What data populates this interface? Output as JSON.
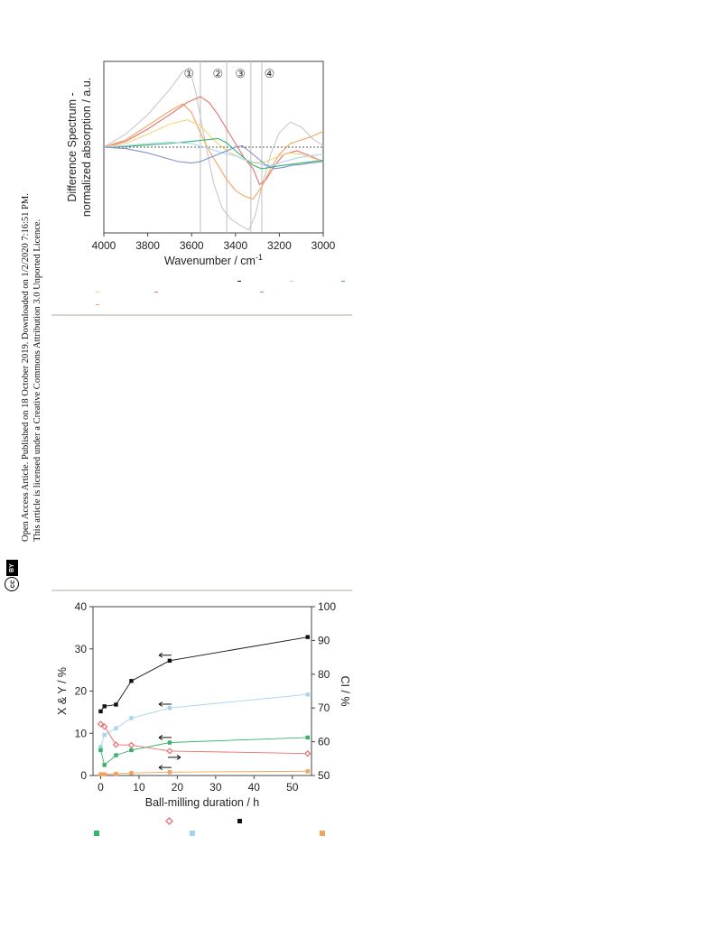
{
  "sidebar": {
    "line1": "Open Access Article. Published on 18 October 2019. Downloaded on 1/2/2020 7:16:51 PM.",
    "line2": "This article is licensed under a Creative Commons Attribution 3.0 Unported Licence.",
    "cc_label": "cc",
    "by_label": "BY"
  },
  "colors": {
    "gray": "#c8c8c8",
    "red": "#e8706f",
    "orange": "#f2a35e",
    "yellow": "#f3d47a",
    "green": "#36b36b",
    "blue": "#7f8fd0",
    "lightblue": "#a7d3ee",
    "black": "#111111"
  },
  "chart_data": [
    {
      "type": "line",
      "xlabel": "Wavenumber / cm",
      "xlabel_sup": "-1",
      "ylabel_line1": "Difference Spectrum -",
      "ylabel_line2": "normalized absorption / a.u.",
      "xlim": [
        4000,
        3000
      ],
      "x_reversed": true,
      "x_ticks": [
        "4000",
        "3800",
        "3600",
        "3400",
        "3200",
        "3000"
      ],
      "regions": [
        {
          "label": "①",
          "x": 3612
        },
        {
          "label": "②",
          "x": 3480
        },
        {
          "label": "③",
          "x": 3378
        },
        {
          "label": "④",
          "x": 3245
        }
      ],
      "vlines": [
        3560,
        3440,
        3330,
        3280
      ],
      "baseline": 0,
      "series": [
        {
          "color_key": "gray",
          "x": [
            4000,
            3900,
            3800,
            3700,
            3640,
            3610,
            3580,
            3540,
            3500,
            3460,
            3420,
            3380,
            3340,
            3310,
            3280,
            3240,
            3200,
            3150,
            3100,
            3050,
            3000
          ],
          "y": [
            0,
            0.18,
            0.45,
            0.8,
            1.05,
            1.1,
            0.75,
            0.1,
            -0.5,
            -0.85,
            -1.0,
            -1.08,
            -1.15,
            -0.95,
            -0.55,
            -0.1,
            0.2,
            0.35,
            0.28,
            0.12,
            0.02
          ]
        },
        {
          "color_key": "red",
          "x": [
            4000,
            3900,
            3800,
            3700,
            3620,
            3560,
            3520,
            3480,
            3440,
            3400,
            3360,
            3320,
            3290,
            3260,
            3220,
            3180,
            3120,
            3060,
            3000
          ],
          "y": [
            0,
            0.08,
            0.25,
            0.45,
            0.62,
            0.7,
            0.62,
            0.45,
            0.25,
            0.05,
            -0.15,
            -0.3,
            -0.52,
            -0.45,
            -0.25,
            -0.1,
            -0.05,
            -0.12,
            -0.2
          ]
        },
        {
          "color_key": "orange",
          "x": [
            4000,
            3900,
            3800,
            3700,
            3640,
            3600,
            3560,
            3520,
            3480,
            3440,
            3400,
            3360,
            3320,
            3280,
            3240,
            3200,
            3150,
            3100,
            3050,
            3000
          ],
          "y": [
            0,
            0.1,
            0.3,
            0.5,
            0.6,
            0.48,
            0.2,
            -0.05,
            -0.25,
            -0.45,
            -0.6,
            -0.68,
            -0.72,
            -0.55,
            -0.3,
            -0.1,
            0.05,
            0.1,
            0.15,
            0.22
          ]
        },
        {
          "color_key": "yellow",
          "x": [
            4000,
            3900,
            3800,
            3700,
            3620,
            3560,
            3500,
            3440,
            3380,
            3320,
            3260,
            3200,
            3150,
            3100,
            3050,
            3000
          ],
          "y": [
            0,
            0.05,
            0.18,
            0.32,
            0.38,
            0.3,
            0.1,
            -0.05,
            -0.15,
            -0.22,
            -0.2,
            -0.12,
            -0.08,
            -0.1,
            -0.15,
            -0.2
          ]
        },
        {
          "color_key": "green",
          "x": [
            4000,
            3900,
            3800,
            3700,
            3600,
            3540,
            3480,
            3440,
            3400,
            3360,
            3320,
            3280,
            3240,
            3200,
            3150,
            3100,
            3050,
            3000
          ],
          "y": [
            0,
            0.01,
            0.03,
            0.05,
            0.08,
            0.1,
            0.12,
            0.06,
            -0.05,
            -0.15,
            -0.25,
            -0.3,
            -0.28,
            -0.26,
            -0.24,
            -0.22,
            -0.2,
            -0.18
          ]
        },
        {
          "color_key": "lightblue",
          "x": [
            4000,
            3900,
            3800,
            3700,
            3600,
            3520,
            3460,
            3400,
            3350,
            3300,
            3260,
            3220,
            3180,
            3120,
            3060,
            3000
          ],
          "y": [
            0,
            0.02,
            0.05,
            0.07,
            0.05,
            -0.02,
            -0.08,
            -0.12,
            -0.18,
            -0.22,
            -0.26,
            -0.24,
            -0.2,
            -0.15,
            -0.12,
            -0.1
          ]
        },
        {
          "color_key": "blue",
          "x": [
            4000,
            3900,
            3800,
            3720,
            3660,
            3600,
            3560,
            3520,
            3480,
            3440,
            3400,
            3370,
            3340,
            3300,
            3260,
            3220,
            3180,
            3140,
            3100,
            3060,
            3000
          ],
          "y": [
            0,
            -0.02,
            -0.08,
            -0.15,
            -0.2,
            -0.22,
            -0.2,
            -0.15,
            -0.1,
            -0.05,
            0,
            0.02,
            -0.05,
            -0.15,
            -0.25,
            -0.3,
            -0.28,
            -0.25,
            -0.24,
            -0.22,
            -0.2
          ]
        }
      ]
    },
    {
      "type": "line",
      "xlabel": "Ball-milling duration / h",
      "ylabel": "X & Y / %",
      "y2label": "CI / %",
      "xlim": [
        -2,
        55
      ],
      "ylim": [
        0,
        40
      ],
      "y2lim": [
        50,
        100
      ],
      "x_ticks": [
        0,
        10,
        20,
        30,
        40,
        50
      ],
      "y_ticks": [
        0,
        10,
        20,
        30,
        40
      ],
      "y2_ticks": [
        50,
        60,
        70,
        80,
        90,
        100
      ],
      "series": [
        {
          "color_key": "black",
          "marker": "square",
          "axis": "y2",
          "x": [
            0,
            1,
            4,
            8,
            18,
            54
          ],
          "y": [
            69,
            70.5,
            71,
            78,
            84,
            91
          ]
        },
        {
          "color_key": "lightblue",
          "marker": "square",
          "axis": "y2",
          "x": [
            0,
            1,
            4,
            8,
            18,
            54
          ],
          "y": [
            58.5,
            62,
            64,
            67,
            70,
            74
          ]
        },
        {
          "color_key": "green",
          "marker": "square",
          "axis": "y",
          "x": [
            0,
            1,
            4,
            8,
            18,
            54
          ],
          "y": [
            6,
            2.5,
            4.8,
            6,
            7.8,
            9
          ]
        },
        {
          "color_key": "red",
          "marker": "diamond-open",
          "axis": "y",
          "x": [
            0,
            1,
            4,
            8,
            18,
            54
          ],
          "y": [
            12.2,
            11.6,
            7.3,
            7.2,
            5.8,
            5.2
          ]
        },
        {
          "color_key": "orange",
          "marker": "square",
          "axis": "y",
          "x": [
            0,
            1,
            4,
            8,
            18,
            54
          ],
          "y": [
            0.3,
            0.3,
            0.4,
            0.6,
            0.8,
            1
          ]
        }
      ],
      "arrows": [
        {
          "x": 18,
          "y": 28.5,
          "dir": "left"
        },
        {
          "x": 18,
          "y": 16.9,
          "dir": "left"
        },
        {
          "x": 18,
          "y": 9,
          "dir": "left"
        },
        {
          "x": 18,
          "y": 1.9,
          "dir": "left"
        },
        {
          "x": 18,
          "y": 4.3,
          "dir": "right"
        }
      ]
    }
  ]
}
